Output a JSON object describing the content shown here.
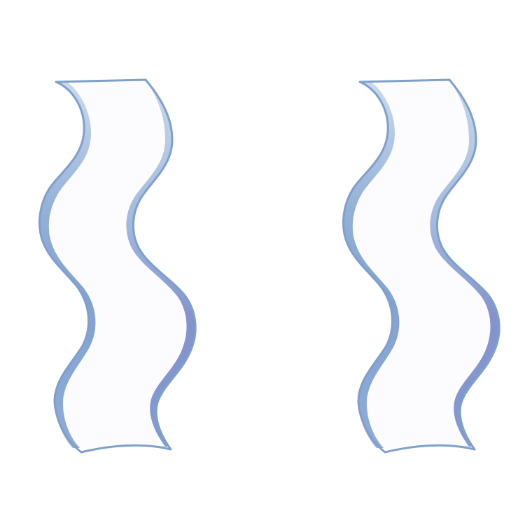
{
  "scene": {
    "background_color": "#ffffff",
    "ribbons": [
      {
        "name": "ribbon-left",
        "outline_color": "#7f9fcc",
        "face_color": "#fcfcfe",
        "shade_light": "#c5d7ea",
        "shade_mid": "#7b9dd0",
        "shade_dark": "#7d8ccb"
      },
      {
        "name": "ribbon-right",
        "outline_color": "#7f9fcc",
        "face_color": "#fcfcfe",
        "shade_light": "#c5d7ea",
        "shade_mid": "#7b9dd0",
        "shade_dark": "#7d8ccb"
      }
    ]
  }
}
